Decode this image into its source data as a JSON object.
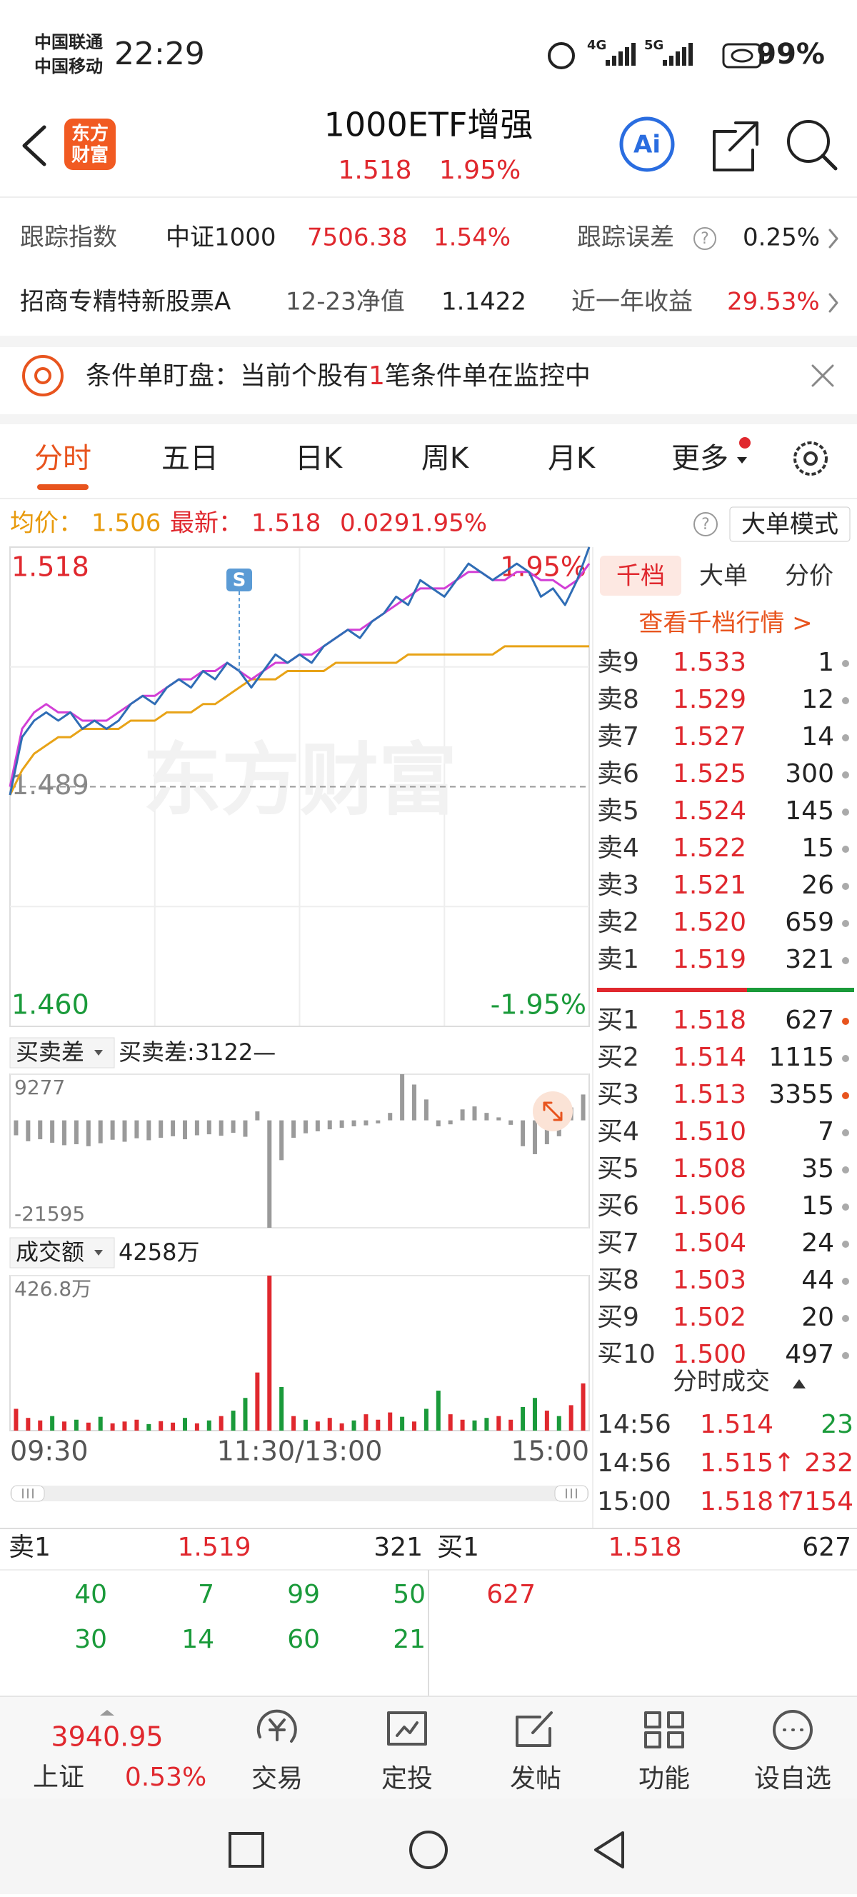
{
  "status_bar": {
    "carrier1": "中国联通",
    "carrier2": "中国移动",
    "time": "22:29",
    "net1": "4G",
    "net2": "5G",
    "battery": "99%"
  },
  "header": {
    "logo_line1": "东方",
    "logo_line2": "财富",
    "title": "1000ETF增强",
    "price": "1.518",
    "change_pct": "1.95%",
    "ai": "Ai"
  },
  "tracking": {
    "label": "跟踪指数",
    "index": "中证1000",
    "index_value": "7506.38",
    "index_pct": "1.54%",
    "error_label": "跟踪误差",
    "help": "?",
    "error_value": "0.25%"
  },
  "fund": {
    "name": "招商专精特新股票A",
    "nav_label": "12-23净值",
    "nav": "1.1422",
    "return_label": "近一年收益",
    "return_value": "29.53%"
  },
  "banner": {
    "prefix": "条件单盯盘：当前个股有",
    "count": "1",
    "suffix": "笔条件单在监控中"
  },
  "tabs": [
    "分时",
    "五日",
    "日K",
    "周K",
    "月K",
    "更多"
  ],
  "quote": {
    "avg_label": "均价：",
    "avg": "1.506",
    "last_label": "最新：",
    "last": "1.518",
    "change": "0.029",
    "pct": "1.95%",
    "help": "?",
    "mode_button": "大单模式"
  },
  "intraday": {
    "type": "line",
    "watermark": "东方财富",
    "xlim": [
      0,
      240
    ],
    "xticks": [
      {
        "value": 0,
        "label": "09:30"
      },
      {
        "value": 120,
        "label": "11:30/13:00"
      },
      {
        "value": 240,
        "label": "15:00"
      }
    ],
    "ylim": [
      1.46,
      1.518
    ],
    "yticks": [
      1.518,
      1.489,
      {
        "value": 1.46,
        "label": "1.460"
      }
    ],
    "y2lim": [
      -1.95,
      1.95
    ],
    "y2ticks": [
      {
        "value": 1.95,
        "label": "1.95%"
      },
      {
        "value": -1.95,
        "label": "-1.95%"
      }
    ],
    "x": [
      0,
      5,
      10,
      15,
      20,
      25,
      30,
      35,
      40,
      45,
      50,
      55,
      60,
      65,
      70,
      75,
      80,
      85,
      90,
      95,
      100,
      105,
      110,
      115,
      120,
      125,
      130,
      135,
      140,
      145,
      150,
      155,
      160,
      165,
      170,
      175,
      180,
      185,
      190,
      195,
      200,
      205,
      210,
      215,
      220,
      225,
      230,
      235,
      240
    ],
    "series": [
      {
        "color": "#e8a317",
        "values": [
          1.488,
          1.491,
          1.493,
          1.494,
          1.495,
          1.495,
          1.496,
          1.496,
          1.496,
          1.496,
          1.497,
          1.497,
          1.497,
          1.498,
          1.498,
          1.498,
          1.499,
          1.499,
          1.5,
          1.501,
          1.502,
          1.502,
          1.502,
          1.503,
          1.503,
          1.503,
          1.503,
          1.504,
          1.504,
          1.504,
          1.504,
          1.504,
          1.504,
          1.505,
          1.505,
          1.505,
          1.505,
          1.505,
          1.505,
          1.505,
          1.505,
          1.506,
          1.506,
          1.506,
          1.506,
          1.506,
          1.506,
          1.506,
          1.506
        ]
      },
      {
        "color": "#2f6db5",
        "values": [
          1.488,
          1.495,
          1.497,
          1.498,
          1.497,
          1.498,
          1.496,
          1.497,
          1.496,
          1.497,
          1.499,
          1.5,
          1.499,
          1.501,
          1.502,
          1.501,
          1.503,
          1.502,
          1.504,
          1.503,
          1.501,
          1.503,
          1.505,
          1.504,
          1.505,
          1.504,
          1.506,
          1.507,
          1.508,
          1.507,
          1.509,
          1.51,
          1.512,
          1.511,
          1.514,
          1.513,
          1.512,
          1.514,
          1.516,
          1.515,
          1.514,
          1.515,
          1.516,
          1.515,
          1.512,
          1.513,
          1.511,
          1.514,
          1.518
        ]
      },
      {
        "color": "#d23fd6",
        "values": [
          1.489,
          1.496,
          1.498,
          1.499,
          1.498,
          1.498,
          1.497,
          1.497,
          1.497,
          1.498,
          1.499,
          1.5,
          1.5,
          1.501,
          1.502,
          1.502,
          1.503,
          1.503,
          1.504,
          1.503,
          1.502,
          1.503,
          1.504,
          1.504,
          1.505,
          1.505,
          1.506,
          1.507,
          1.508,
          1.508,
          1.509,
          1.51,
          1.511,
          1.512,
          1.513,
          1.513,
          1.513,
          1.514,
          1.515,
          1.515,
          1.514,
          1.514,
          1.515,
          1.515,
          1.514,
          1.514,
          1.513,
          1.514,
          1.516
        ]
      }
    ],
    "signal": {
      "label": "S",
      "x": 95
    }
  },
  "imbalance": {
    "type": "bar",
    "selector": "买卖差",
    "current": "买卖差:3122—",
    "ylim": [
      -21595,
      9277
    ],
    "yticks": [
      9277,
      -21595
    ],
    "values": [
      -3000,
      -4200,
      -3800,
      -4500,
      -5000,
      -4800,
      -5200,
      -4600,
      -3900,
      -4300,
      -3600,
      -4000,
      -3500,
      -3200,
      -3800,
      -3000,
      -2800,
      -3100,
      -2500,
      -3300,
      1800,
      -21595,
      -8000,
      -3500,
      -2600,
      -2200,
      -1800,
      -1500,
      -1200,
      -1000,
      -600,
      1500,
      9277,
      7200,
      4200,
      -1200,
      -800,
      2200,
      2800,
      1500,
      600,
      -900,
      -5200,
      -6800,
      -4800,
      -3200,
      2600,
      5200
    ]
  },
  "turnover": {
    "type": "bar",
    "selector": "成交额",
    "total": "4258万",
    "ylim": [
      0,
      426.8
    ],
    "yticks": [
      {
        "value": 426.8,
        "label": "426.8万"
      }
    ],
    "values": [
      60,
      35,
      28,
      40,
      25,
      30,
      22,
      38,
      20,
      25,
      30,
      18,
      26,
      22,
      35,
      20,
      28,
      40,
      55,
      90,
      160,
      426.8,
      120,
      40,
      30,
      25,
      35,
      20,
      28,
      45,
      30,
      50,
      38,
      25,
      60,
      110,
      45,
      30,
      28,
      35,
      40,
      30,
      65,
      90,
      55,
      40,
      70,
      130
    ]
  },
  "depth": {
    "tabs": [
      "千档",
      "大单",
      "分价"
    ],
    "link": "查看千档行情 >",
    "asks": [
      {
        "label": "卖9",
        "price": "1.533",
        "volume": "1"
      },
      {
        "label": "卖8",
        "price": "1.529",
        "volume": "12"
      },
      {
        "label": "卖7",
        "price": "1.527",
        "volume": "14"
      },
      {
        "label": "卖6",
        "price": "1.525",
        "volume": "300"
      },
      {
        "label": "卖5",
        "price": "1.524",
        "volume": "145"
      },
      {
        "label": "卖4",
        "price": "1.522",
        "volume": "15"
      },
      {
        "label": "卖3",
        "price": "1.521",
        "volume": "26"
      },
      {
        "label": "卖2",
        "price": "1.520",
        "volume": "659"
      },
      {
        "label": "卖1",
        "price": "1.519",
        "volume": "321"
      }
    ],
    "bids": [
      {
        "label": "买1",
        "price": "1.518",
        "volume": "627"
      },
      {
        "label": "买2",
        "price": "1.514",
        "volume": "1115"
      },
      {
        "label": "买3",
        "price": "1.513",
        "volume": "3355"
      },
      {
        "label": "买4",
        "price": "1.510",
        "volume": "7"
      },
      {
        "label": "买5",
        "price": "1.508",
        "volume": "35"
      },
      {
        "label": "买6",
        "price": "1.506",
        "volume": "15"
      },
      {
        "label": "买7",
        "price": "1.504",
        "volume": "24"
      },
      {
        "label": "买8",
        "price": "1.503",
        "volume": "44"
      },
      {
        "label": "买9",
        "price": "1.502",
        "volume": "20"
      },
      {
        "label": "买10",
        "price": "1.500",
        "volume": "497"
      }
    ],
    "highlighted_bids": [
      0,
      2
    ]
  },
  "trades": {
    "title": "分时成交",
    "rows": [
      {
        "time": "14:56",
        "price": "1.514",
        "volume": "23",
        "color": "#1a9a3a"
      },
      {
        "time": "14:56",
        "price": "1.515↑",
        "volume": "232",
        "color": "#e0282e"
      },
      {
        "time": "15:00",
        "price": "1.518↑",
        "volume": "7154",
        "color": "#e0282e"
      }
    ]
  },
  "order_queue": {
    "ask_label": "卖1",
    "ask_price": "1.519",
    "ask_volume": "321",
    "bid_label": "买1",
    "bid_price": "1.518",
    "bid_volume": "627",
    "ask_orders": [
      "40",
      "7",
      "99",
      "50",
      "30",
      "14",
      "60",
      "21"
    ],
    "bid_orders": [
      "627"
    ]
  },
  "bottom_nav": {
    "index_value": "3940.95",
    "index_name": "上证",
    "index_pct": "0.53%",
    "items": [
      "交易",
      "定投",
      "发帖",
      "功能",
      "设自选"
    ]
  }
}
